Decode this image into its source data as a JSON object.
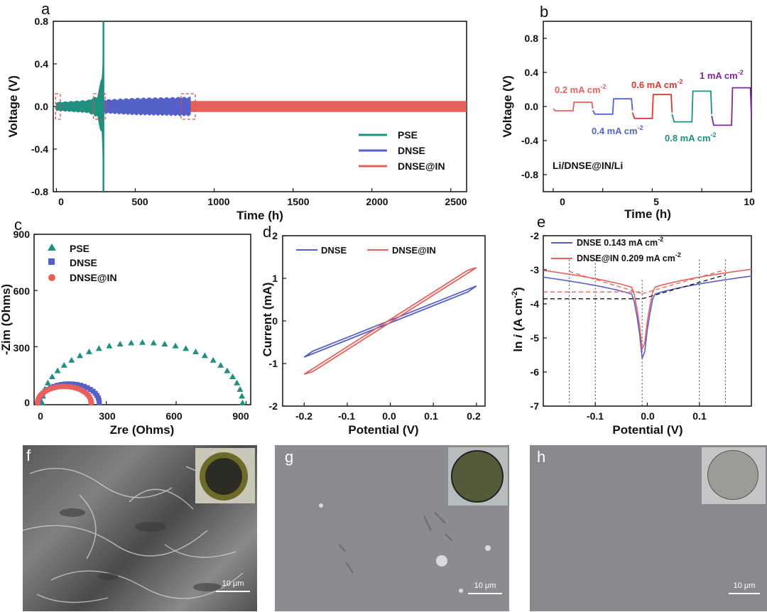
{
  "panels": {
    "a": "a",
    "b": "b",
    "c": "c",
    "d": "d",
    "e": "e",
    "f": "f",
    "g": "g",
    "h": "h"
  },
  "chart_data": [
    {
      "id": "a",
      "type": "line",
      "xlabel": "Time (h)",
      "ylabel": "Voltage (V)",
      "xlim": [
        -20,
        2600
      ],
      "ylim": [
        -0.8,
        0.8
      ],
      "xticks": [
        "0",
        "500",
        "1000",
        "1500",
        "2000",
        "2500"
      ],
      "yticks": [
        "0.8",
        "0.4",
        "0.0",
        "-0.4",
        "-0.8"
      ],
      "series": [
        {
          "name": "PSE",
          "color": "#1f9080",
          "x_range": [
            0,
            300
          ],
          "envelope": [
            [
              0,
              0.04
            ],
            [
              100,
              0.05
            ],
            [
              200,
              0.06
            ],
            [
              260,
              0.1
            ],
            [
              290,
              0.3
            ],
            [
              300,
              0.8
            ]
          ]
        },
        {
          "name": "DNSE",
          "color": "#5560c8",
          "x_range": [
            250,
            850
          ],
          "envelope": [
            [
              250,
              0.06
            ],
            [
              500,
              0.08
            ],
            [
              850,
              0.09
            ]
          ]
        },
        {
          "name": "DNSE@IN",
          "color": "#e8605a",
          "x_range": [
            850,
            2600
          ],
          "envelope": [
            [
              850,
              0.05
            ],
            [
              2600,
              0.05
            ]
          ]
        }
      ],
      "legend": "bottom-right"
    },
    {
      "id": "b",
      "type": "line",
      "xlabel": "Time (h)",
      "ylabel": "Voltage (V)",
      "xlim": [
        -0.5,
        10
      ],
      "ylim": [
        -1.0,
        1.0
      ],
      "xticks": [
        "0",
        "5",
        "10"
      ],
      "yticks": [
        "0.8",
        "0.4",
        "0.0",
        "-0.4",
        "-0.8"
      ],
      "annotation": "Li/DNSE@IN/Li",
      "steps": [
        {
          "label": "0.2 mA cm",
          "sup": "-2",
          "color": "#e8605a",
          "x": [
            0,
            2
          ],
          "v": 0.05
        },
        {
          "label": "0.4 mA cm",
          "sup": "-2",
          "color": "#5560c8",
          "x": [
            2,
            4
          ],
          "v": 0.09
        },
        {
          "label": "0.6 mA cm",
          "sup": "-2",
          "color": "#e03530",
          "x": [
            4,
            6
          ],
          "v": 0.14
        },
        {
          "label": "0.8 mA cm",
          "sup": "-2",
          "color": "#1f9080",
          "x": [
            6,
            8
          ],
          "v": 0.18
        },
        {
          "label": "1 mA cm",
          "sup": "-2",
          "color": "#7a2a9a",
          "x": [
            8,
            10
          ],
          "v": 0.22
        }
      ]
    },
    {
      "id": "c",
      "type": "scatter",
      "xlabel": "Zre (Ohms)",
      "ylabel": "-Zim (Ohms)",
      "xlim": [
        -10,
        920
      ],
      "ylim": [
        -10,
        900
      ],
      "xticks": [
        "0",
        "300",
        "600",
        "900"
      ],
      "yticks": [
        "900",
        "600",
        "300",
        "0"
      ],
      "series": [
        {
          "name": "PSE",
          "color": "#1f9080",
          "marker": "triangle",
          "center": 455,
          "radius": 430,
          "depression": 0.75
        },
        {
          "name": "DNSE",
          "color": "#5560c8",
          "marker": "square",
          "center": 140,
          "radius": 130,
          "depression": 0.78
        },
        {
          "name": "DNSE@IN",
          "color": "#e8605a",
          "marker": "circle",
          "center": 120,
          "radius": 115,
          "depression": 0.76
        }
      ],
      "legend": "top-left"
    },
    {
      "id": "d",
      "type": "line",
      "xlabel": "Potential (V)",
      "ylabel": "Current (mA)",
      "xlim": [
        -0.25,
        0.22
      ],
      "ylim": [
        -2,
        2
      ],
      "xticks": [
        "-0.2",
        "-0.1",
        "0.0",
        "0.1",
        "0.2"
      ],
      "yticks": [
        "2",
        "1",
        "0",
        "-1",
        "-2"
      ],
      "series": [
        {
          "name": "DNSE",
          "color": "#5560c8",
          "loop": [
            [
              -0.2,
              -0.85
            ],
            [
              0.2,
              0.82
            ]
          ],
          "width": 0.14
        },
        {
          "name": "DNSE@IN",
          "color": "#e8605a",
          "loop": [
            [
              -0.2,
              -1.25
            ],
            [
              0.2,
              1.25
            ]
          ],
          "width": 0.06
        }
      ],
      "legend": "top"
    },
    {
      "id": "e",
      "type": "line",
      "xlabel": "Potential (V)",
      "ylabel": "ln i (A cm-2)",
      "xlim": [
        -0.2,
        0.2
      ],
      "ylim": [
        -7,
        -2
      ],
      "xticks": [
        "-0.1",
        "0.0",
        "0.1"
      ],
      "yticks": [
        "-2",
        "-3",
        "-4",
        "-5",
        "-6",
        "-7"
      ],
      "series": [
        {
          "name": "DNSE 0.143 mA cm",
          "sup": "-2",
          "color": "#5560c8",
          "min_y": -6.4
        },
        {
          "name": "DNSE@IN 0.209 mA cm",
          "sup": "-2",
          "color": "#e8605a",
          "min_y": -6.1
        }
      ],
      "legend": "top-left"
    }
  ],
  "images": [
    {
      "id": "f",
      "scale": "10 μm"
    },
    {
      "id": "g",
      "scale": "10 μm"
    },
    {
      "id": "h",
      "scale": "10 μm"
    }
  ]
}
